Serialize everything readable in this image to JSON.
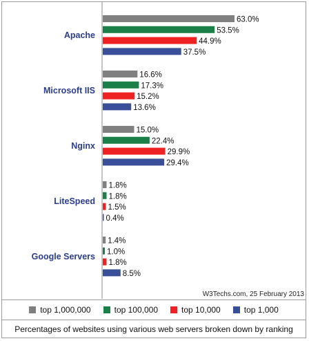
{
  "chart_data": {
    "type": "bar",
    "orientation": "horizontal",
    "categories": [
      "Apache",
      "Microsoft IIS",
      "Nginx",
      "LiteSpeed",
      "Google Servers"
    ],
    "series": [
      {
        "name": "top 1,000,000",
        "color": "#808080",
        "values": [
          63.0,
          16.6,
          15.0,
          1.8,
          1.4
        ],
        "labels": [
          "63.0%",
          "16.6%",
          "15.0%",
          "1.8%",
          "1.4%"
        ]
      },
      {
        "name": "top 100,000",
        "color": "#1a8048",
        "values": [
          53.5,
          17.3,
          22.4,
          1.8,
          1.0
        ],
        "labels": [
          "53.5%",
          "17.3%",
          "22.4%",
          "1.8%",
          "1.0%"
        ]
      },
      {
        "name": "top 10,000",
        "color": "#ee2222",
        "values": [
          44.9,
          15.2,
          29.9,
          1.5,
          1.8
        ],
        "labels": [
          "44.9%",
          "15.2%",
          "29.9%",
          "1.5%",
          "1.8%"
        ]
      },
      {
        "name": "top 1,000",
        "color": "#3a4f9a",
        "values": [
          37.5,
          13.6,
          29.4,
          0.4,
          8.5
        ],
        "labels": [
          "37.5%",
          "13.6%",
          "29.4%",
          "0.4%",
          "8.5%"
        ]
      }
    ],
    "xlim": [
      0,
      70
    ],
    "grid": false,
    "legend_position": "bottom",
    "credit": "W3Techs.com, 25 February 2013",
    "caption": "Percentages of websites using various web servers broken down by ranking"
  }
}
